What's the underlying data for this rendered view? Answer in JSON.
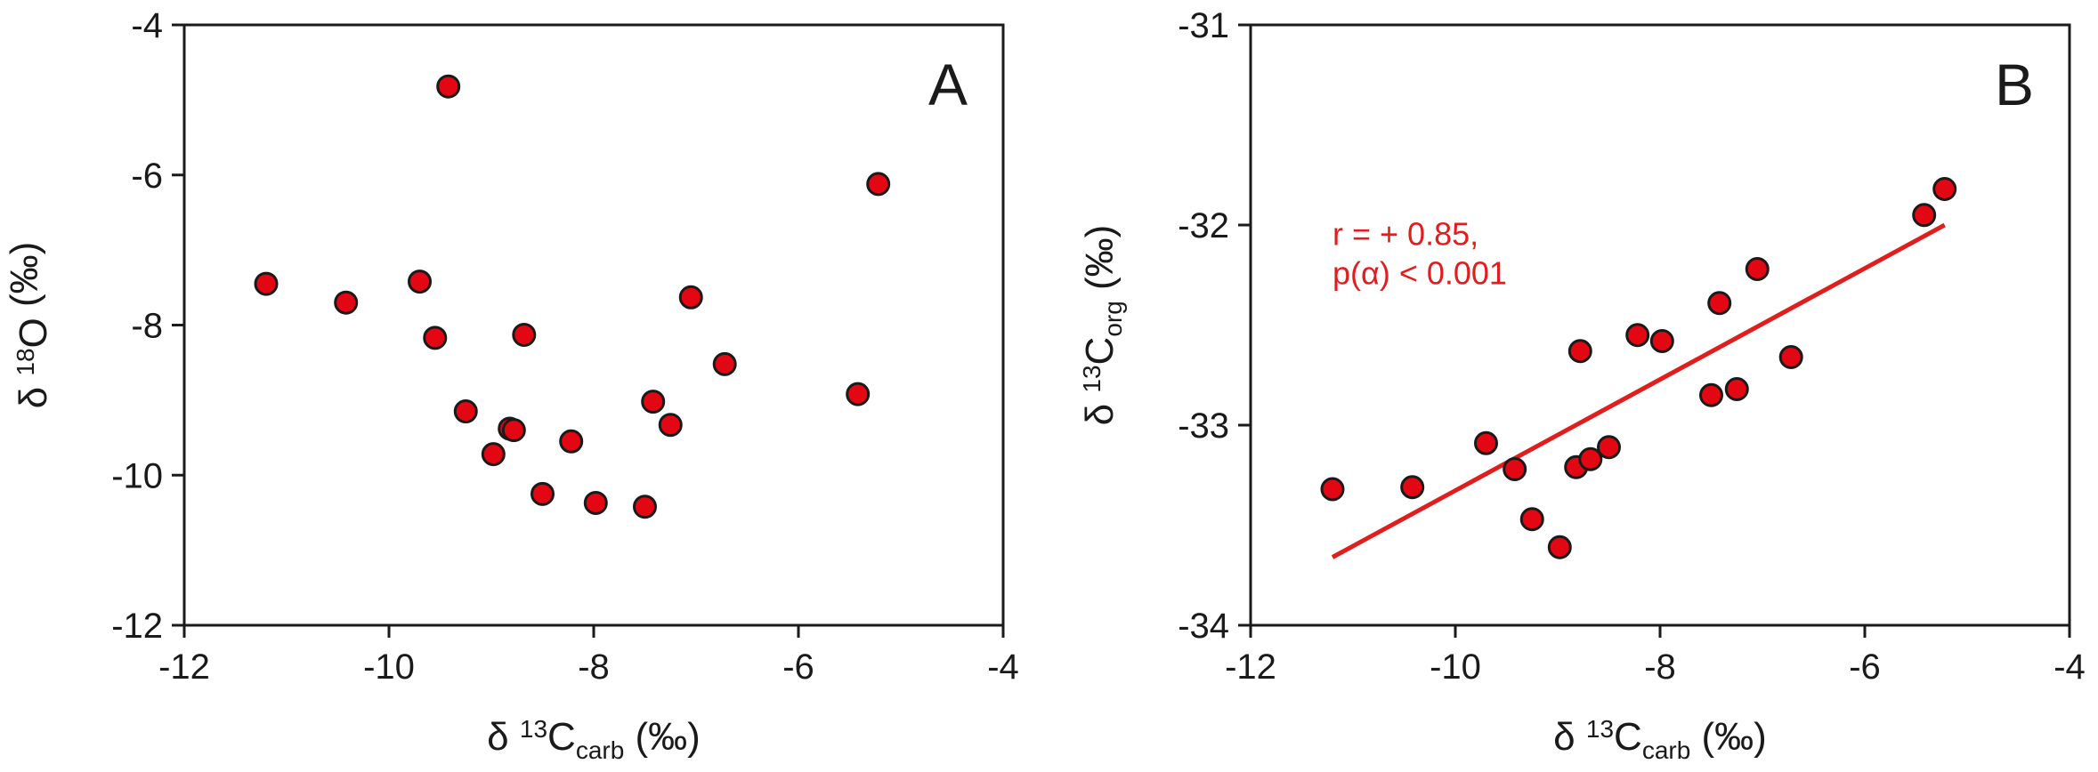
{
  "colors": {
    "point_fill": "#e30613",
    "point_stroke": "#1a1a1a",
    "axis": "#1a1a1a",
    "regression_line": "#e01e1e",
    "annotation_text": "#e01e1e"
  },
  "chart_data": [
    {
      "type": "scatter",
      "panel_label": "A",
      "xlabel": {
        "prefix": "δ ",
        "sup": "13",
        "main": "C",
        "sub": "carb",
        "suffix": " (‰)"
      },
      "ylabel": {
        "prefix": "δ ",
        "sup": "18",
        "main": "O",
        "sub": "",
        "suffix": " (‰)"
      },
      "xlim": [
        -12,
        -4
      ],
      "ylim": [
        -12,
        -4
      ],
      "xticks": [
        "-12",
        "-10",
        "-8",
        "-6",
        "-4"
      ],
      "yticks": [
        "-4",
        "-6",
        "-8",
        "-10",
        "-12"
      ],
      "xtick_values": [
        -12,
        -10,
        -8,
        -6,
        -4
      ],
      "ytick_values": [
        -4,
        -6,
        -8,
        -10,
        -12
      ],
      "grid": false,
      "points": [
        {
          "x": -11.2,
          "y": -7.45
        },
        {
          "x": -10.42,
          "y": -7.7
        },
        {
          "x": -9.7,
          "y": -7.42
        },
        {
          "x": -9.55,
          "y": -8.17
        },
        {
          "x": -9.42,
          "y": -4.82
        },
        {
          "x": -9.25,
          "y": -9.15
        },
        {
          "x": -8.98,
          "y": -9.72
        },
        {
          "x": -8.82,
          "y": -9.38
        },
        {
          "x": -8.78,
          "y": -9.4
        },
        {
          "x": -8.68,
          "y": -8.13
        },
        {
          "x": -8.5,
          "y": -10.25
        },
        {
          "x": -8.22,
          "y": -9.55
        },
        {
          "x": -7.98,
          "y": -10.37
        },
        {
          "x": -7.5,
          "y": -10.42
        },
        {
          "x": -7.42,
          "y": -9.02
        },
        {
          "x": -7.25,
          "y": -9.33
        },
        {
          "x": -7.05,
          "y": -7.63
        },
        {
          "x": -6.72,
          "y": -8.52
        },
        {
          "x": -5.42,
          "y": -8.92
        },
        {
          "x": -5.22,
          "y": -6.12
        }
      ]
    },
    {
      "type": "scatter",
      "panel_label": "B",
      "xlabel": {
        "prefix": "δ ",
        "sup": "13",
        "main": "C",
        "sub": "carb",
        "suffix": " (‰)"
      },
      "ylabel": {
        "prefix": "δ ",
        "sup": "13",
        "main": "C",
        "sub": "org",
        "suffix": " (‰)"
      },
      "xlim": [
        -12,
        -4
      ],
      "ylim": [
        -34,
        -31
      ],
      "xticks": [
        "-12",
        "-10",
        "-8",
        "-6",
        "-4"
      ],
      "yticks": [
        "-31",
        "-32",
        "-33",
        "-34"
      ],
      "xtick_values": [
        -12,
        -10,
        -8,
        -6,
        -4
      ],
      "ytick_values": [
        -31,
        -32,
        -33,
        -34
      ],
      "grid": false,
      "annotation": [
        "r = + 0.85,",
        "p(α) < 0.001"
      ],
      "regression": {
        "x": [
          -11.2,
          -5.22
        ],
        "y": [
          -33.66,
          -32.0
        ]
      },
      "points": [
        {
          "x": -11.2,
          "y": -33.32
        },
        {
          "x": -10.42,
          "y": -33.31
        },
        {
          "x": -9.7,
          "y": -33.09
        },
        {
          "x": -9.42,
          "y": -33.22
        },
        {
          "x": -9.25,
          "y": -33.47
        },
        {
          "x": -8.98,
          "y": -33.61
        },
        {
          "x": -8.82,
          "y": -33.21
        },
        {
          "x": -8.78,
          "y": -32.63
        },
        {
          "x": -8.68,
          "y": -33.17
        },
        {
          "x": -8.5,
          "y": -33.11
        },
        {
          "x": -8.22,
          "y": -32.55
        },
        {
          "x": -7.98,
          "y": -32.58
        },
        {
          "x": -7.5,
          "y": -32.85
        },
        {
          "x": -7.42,
          "y": -32.39
        },
        {
          "x": -7.25,
          "y": -32.82
        },
        {
          "x": -7.05,
          "y": -32.22
        },
        {
          "x": -6.72,
          "y": -32.66
        },
        {
          "x": -5.42,
          "y": -31.95
        },
        {
          "x": -5.22,
          "y": -31.82
        }
      ]
    }
  ]
}
